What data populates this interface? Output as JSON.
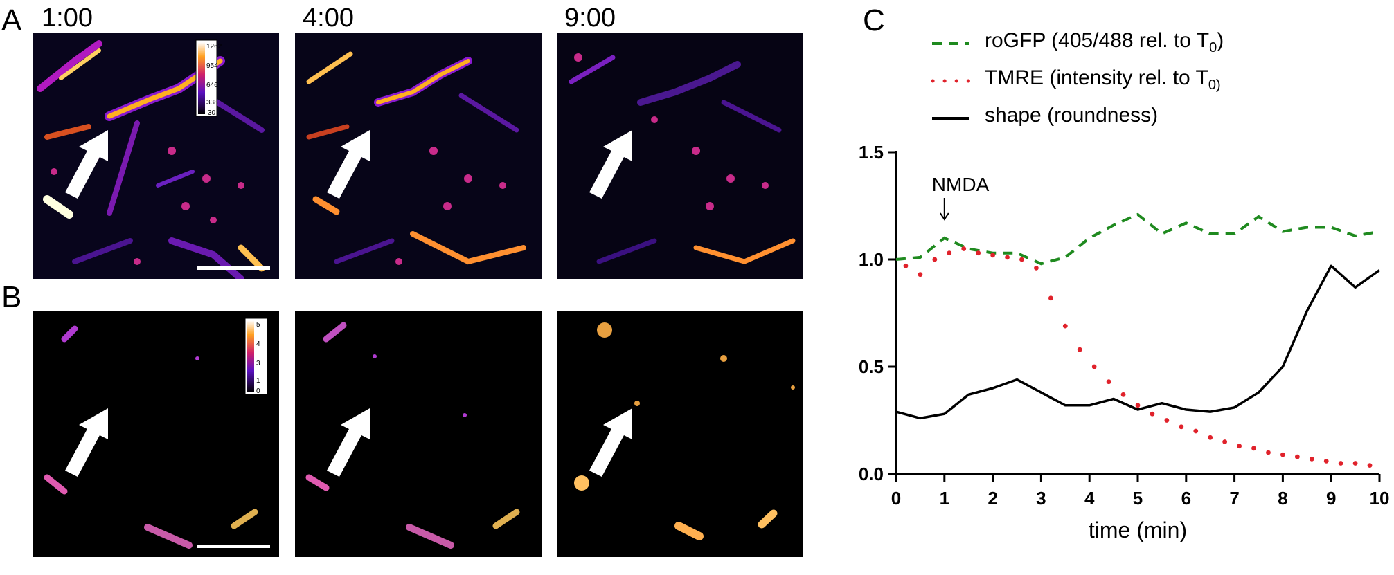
{
  "panels": {
    "a_letter": "A",
    "b_letter": "B",
    "c_letter": "C"
  },
  "time_labels": [
    "1:00",
    "4:00",
    "9:00"
  ],
  "colorbar_a": {
    "ticks": [
      "1262",
      "954",
      "646",
      "338",
      "30"
    ]
  },
  "colorbar_b": {
    "ticks": [
      "5",
      "4",
      "3",
      "1",
      "0"
    ]
  },
  "colors": {
    "rogfp": "#1f8a1f",
    "tmre": "#e0222b",
    "shape": "#000000",
    "micrograph_bg": "#000000"
  },
  "chart_data": {
    "type": "line",
    "xlabel": "time (min)",
    "ylabel": "",
    "xlim": [
      0,
      10
    ],
    "ylim": [
      0,
      1.5
    ],
    "xticks": [
      0,
      1,
      2,
      3,
      4,
      5,
      6,
      7,
      8,
      9,
      10
    ],
    "yticks": [
      "0.0",
      "0.5",
      "1.0",
      "1.5"
    ],
    "annotation": {
      "text": "NMDA",
      "x": 1
    },
    "legend": {
      "position": "top"
    },
    "series": [
      {
        "name": "roGFP (405/488 rel. to T",
        "name_sub": "0",
        "name_end": ")",
        "style": "dashed",
        "x": [
          0,
          0.5,
          1,
          1.5,
          2,
          2.5,
          3,
          3.5,
          4,
          4.5,
          5,
          5.5,
          6,
          6.5,
          7,
          7.5,
          8,
          8.5,
          9,
          9.5,
          10
        ],
        "values": [
          1.0,
          1.01,
          1.1,
          1.05,
          1.03,
          1.03,
          0.98,
          1.01,
          1.1,
          1.16,
          1.21,
          1.12,
          1.17,
          1.12,
          1.12,
          1.2,
          1.13,
          1.15,
          1.15,
          1.11,
          1.13
        ]
      },
      {
        "name": "TMRE (intensity rel. to T",
        "name_sub": "0)",
        "name_end": "",
        "style": "dotted",
        "x": [
          0.2,
          0.5,
          0.8,
          1.1,
          1.4,
          1.7,
          2.0,
          2.3,
          2.6,
          2.9,
          3.2,
          3.5,
          3.8,
          4.1,
          4.4,
          4.7,
          5.0,
          5.3,
          5.6,
          5.9,
          6.2,
          6.5,
          6.8,
          7.1,
          7.4,
          7.7,
          8.0,
          8.3,
          8.6,
          8.9,
          9.2,
          9.5,
          9.8
        ],
        "values": [
          0.97,
          0.93,
          1.0,
          1.03,
          1.05,
          1.03,
          1.02,
          1.01,
          1.0,
          0.96,
          0.82,
          0.69,
          0.58,
          0.5,
          0.43,
          0.37,
          0.32,
          0.28,
          0.25,
          0.22,
          0.2,
          0.17,
          0.15,
          0.13,
          0.12,
          0.1,
          0.09,
          0.08,
          0.07,
          0.06,
          0.05,
          0.05,
          0.04
        ]
      },
      {
        "name": "shape (roundness)",
        "name_sub": "",
        "name_end": "",
        "style": "solid",
        "x": [
          0,
          0.5,
          1,
          1.5,
          2,
          2.5,
          3,
          3.5,
          4,
          4.5,
          5,
          5.5,
          6,
          6.5,
          7,
          7.5,
          8,
          8.5,
          9,
          9.5,
          10
        ],
        "values": [
          0.29,
          0.26,
          0.28,
          0.37,
          0.4,
          0.44,
          0.38,
          0.32,
          0.32,
          0.35,
          0.3,
          0.33,
          0.3,
          0.29,
          0.31,
          0.38,
          0.5,
          0.76,
          0.97,
          0.87,
          0.95
        ]
      }
    ]
  }
}
